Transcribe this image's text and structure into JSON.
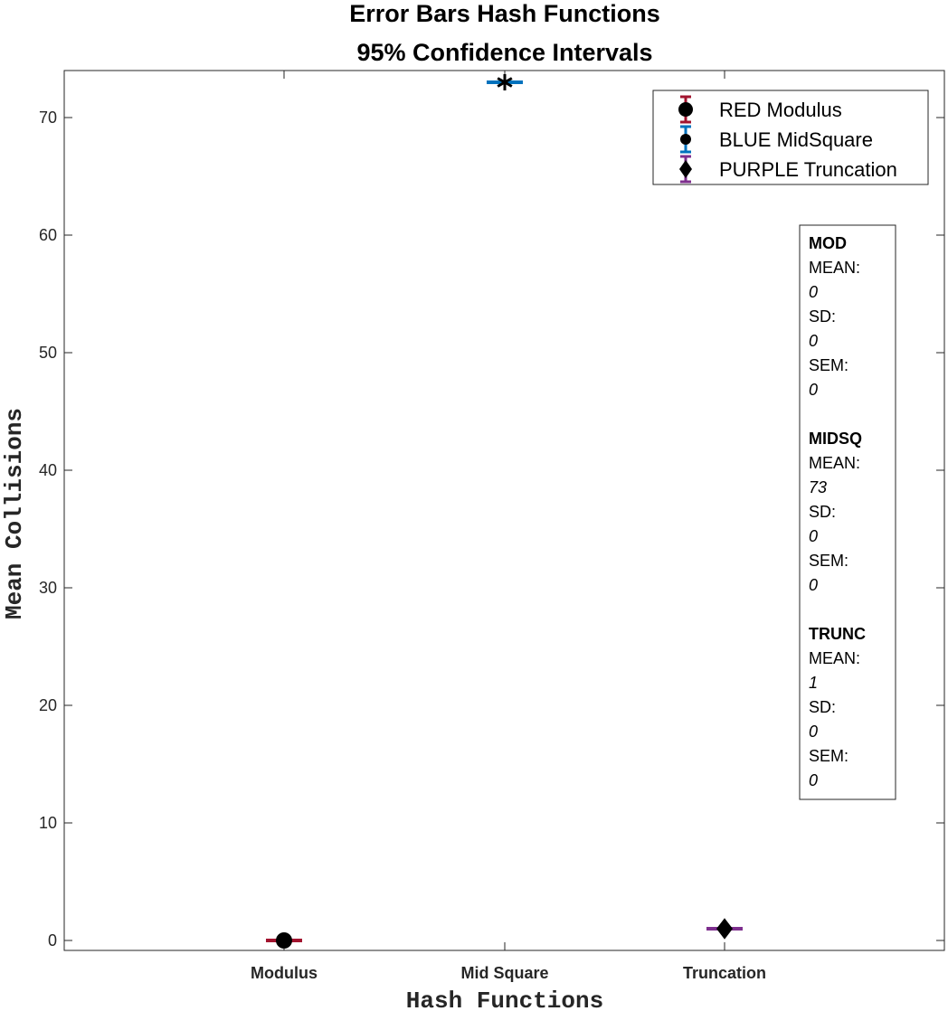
{
  "chart_data": {
    "type": "scatter",
    "title": "Error Bars Hash Functions",
    "subtitle": "95% Confidence Intervals",
    "xlabel": "Hash Functions",
    "ylabel": "Mean Collisions",
    "categories": [
      "Modulus",
      "Mid Square",
      "Truncation"
    ],
    "ylim": [
      -1,
      74
    ],
    "yticks": [
      0,
      10,
      20,
      30,
      40,
      50,
      60,
      70
    ],
    "grid": false,
    "legend_position": "top-right",
    "series": [
      {
        "name": "RED Modulus",
        "category": "Modulus",
        "value": 0,
        "ci": [
          0,
          0
        ],
        "marker": "circle",
        "color": "#A2142F"
      },
      {
        "name": "BLUE MidSquare",
        "category": "Mid Square",
        "value": 73,
        "ci": [
          73,
          73
        ],
        "marker": "asterisk",
        "color": "#0072BD"
      },
      {
        "name": "PURPLE Truncation",
        "category": "Truncation",
        "value": 1,
        "ci": [
          1,
          1
        ],
        "marker": "diamond",
        "color": "#7E2F8E"
      }
    ],
    "annotation": [
      {
        "header": "MOD",
        "lines": [
          "MEAN:",
          "0",
          "SD:",
          "0",
          "SEM:",
          "0"
        ]
      },
      {
        "header": "MIDSQ",
        "lines": [
          "MEAN:",
          "73",
          "SD:",
          "0",
          "SEM:",
          "0"
        ]
      },
      {
        "header": "TRUNC",
        "lines": [
          "MEAN:",
          "1",
          "SD:",
          "0",
          "SEM:",
          "0"
        ]
      }
    ]
  }
}
